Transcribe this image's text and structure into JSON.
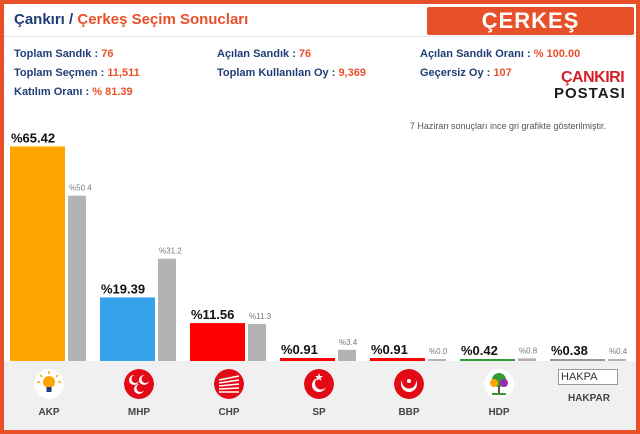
{
  "header": {
    "province": "Çankırı",
    "separator": "/",
    "title": "Çerkeş Seçim Sonucları",
    "district_badge": "ÇERKEŞ"
  },
  "stats": {
    "toplam_sandik": {
      "label": "Toplam Sandık :",
      "value": "76"
    },
    "acilan_sandik": {
      "label": "Açılan Sandık :",
      "value": "76"
    },
    "acilan_sandik_orani": {
      "label": "Açılan Sandık Oranı :",
      "value": "% 100.00"
    },
    "toplam_secmen": {
      "label": "Toplam Seçmen :",
      "value": "11,511"
    },
    "toplam_kullanilan_oy": {
      "label": "Toplam Kullanılan Oy :",
      "value": "9,369"
    },
    "gecersiz_oy": {
      "label": "Geçersiz Oy :",
      "value": "107"
    },
    "katilim_orani": {
      "label": "Katılım Oranı :",
      "value": "% 81.39"
    }
  },
  "logo": {
    "line1": "ÇANKIRI",
    "line2": "POSTASI"
  },
  "note": "7 Haziran sonuçları ince gri grafikte gösterilmiştir.",
  "chart_data": {
    "type": "bar",
    "categories": [
      "AKP",
      "MHP",
      "CHP",
      "SP",
      "BBP",
      "HDP",
      "HAKPAR"
    ],
    "series": [
      {
        "values": [
          65.42,
          19.39,
          11.56,
          0.91,
          0.91,
          0.42,
          0.38
        ]
      },
      {
        "values": [
          50.4,
          31.2,
          11.3,
          3.4,
          0.0,
          0.8,
          0.4
        ]
      }
    ],
    "labels_current": [
      "%65.42",
      "%19.39",
      "%11.56",
      "%0.91",
      "%0.91",
      "%0.42",
      "%0.38"
    ],
    "labels_previous": [
      "%50.4",
      "%31.2",
      "%11.3",
      "%3.4",
      "%0.0",
      "%0.8",
      "%0.4"
    ],
    "colors": [
      "#fea500",
      "#36a2eb",
      "#ff0000",
      "#ff0000",
      "#ff0000",
      "#339933",
      "#999999"
    ],
    "previous_color": "#b3b3b3",
    "ylim": [
      0,
      70
    ]
  },
  "parties": [
    {
      "name": "AKP",
      "icon": "akp-bulb-icon"
    },
    {
      "name": "MHP",
      "icon": "mhp-crescents-icon"
    },
    {
      "name": "CHP",
      "icon": "chp-six-arrows-icon"
    },
    {
      "name": "SP",
      "icon": "sp-crescent-star-icon"
    },
    {
      "name": "BBP",
      "icon": "bbp-crescent-icon"
    },
    {
      "name": "HDP",
      "icon": "hdp-tree-icon"
    },
    {
      "name": "HAKPAR",
      "icon": "hakpar-broken-image-icon",
      "alt": "HAKPA"
    }
  ]
}
